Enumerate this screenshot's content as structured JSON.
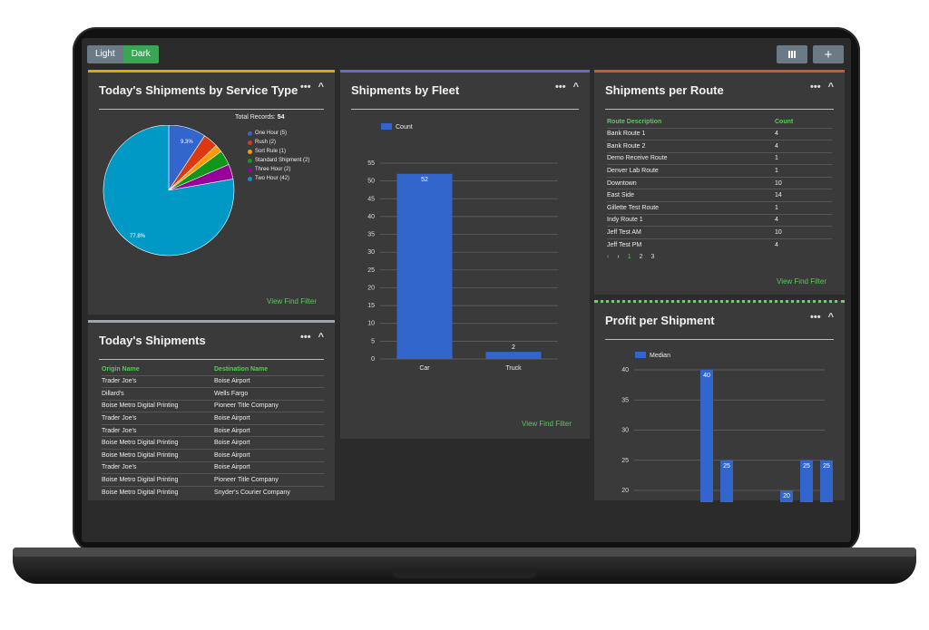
{
  "toolbar": {
    "light_label": "Light",
    "dark_label": "Dark",
    "add_label": "+"
  },
  "colors": {
    "accent_green": "#5cc85c",
    "bar_blue": "#3366cc"
  },
  "common": {
    "menu_dots": "•••",
    "collapse": "^",
    "view_filter": "View Find Filter"
  },
  "service_type": {
    "title": "Today's Shipments by Service Type",
    "total_label": "Total Records:",
    "total_value": "54",
    "pct_two_hour": "77.8%",
    "pct_one_hour": "9.3%",
    "legend": [
      {
        "label": "One Hour (5)",
        "color": "#3366cc",
        "count": 5
      },
      {
        "label": "Rush (2)",
        "color": "#dc3912",
        "count": 2
      },
      {
        "label": "Sort Rule (1)",
        "color": "#ff9900",
        "count": 1
      },
      {
        "label": "Standard Shipment (2)",
        "color": "#109618",
        "count": 2
      },
      {
        "label": "Three Hour (2)",
        "color": "#990099",
        "count": 2
      },
      {
        "label": "Two Hour (42)",
        "color": "#0099c6",
        "count": 42
      }
    ]
  },
  "fleet": {
    "title": "Shipments by Fleet",
    "legend_label": "Count",
    "y_ticks": [
      "0",
      "5",
      "10",
      "15",
      "20",
      "25",
      "30",
      "35",
      "40",
      "45",
      "50",
      "55"
    ],
    "bars": [
      {
        "category": "Car",
        "value": 52,
        "label": "52"
      },
      {
        "category": "Truck",
        "value": 2,
        "label": "2"
      }
    ]
  },
  "routes": {
    "title": "Shipments per Route",
    "col_route": "Route Description",
    "col_count": "Count",
    "rows": [
      {
        "route": "Bank Route 1",
        "count": "4"
      },
      {
        "route": "Bank Route 2",
        "count": "4"
      },
      {
        "route": "Demo Receive Route",
        "count": "1"
      },
      {
        "route": "Denver Lab Route",
        "count": "1"
      },
      {
        "route": "Downtown",
        "count": "10"
      },
      {
        "route": "East Side",
        "count": "14"
      },
      {
        "route": "Gillette Test Route",
        "count": "1"
      },
      {
        "route": "Indy Route 1",
        "count": "4"
      },
      {
        "route": "Jeff Test AM",
        "count": "10"
      },
      {
        "route": "Jeff Test PM",
        "count": "4"
      }
    ],
    "pager": {
      "prev": "‹",
      "next": "›",
      "pages": [
        "1",
        "2",
        "3"
      ]
    }
  },
  "todays": {
    "title": "Today's Shipments",
    "col_origin": "Origin Name",
    "col_dest": "Destination Name",
    "rows": [
      {
        "origin": "Trader Joe's",
        "dest": "Boise Airport"
      },
      {
        "origin": "Dillard's",
        "dest": "Wells Fargo"
      },
      {
        "origin": "Boise Metro Digital Printing",
        "dest": "Pioneer Title Company"
      },
      {
        "origin": "Trader Joe's",
        "dest": "Boise Airport"
      },
      {
        "origin": "Trader Joe's",
        "dest": "Boise Airport"
      },
      {
        "origin": "Boise Metro Digital Printing",
        "dest": "Boise Airport"
      },
      {
        "origin": "Boise Metro Digital Printing",
        "dest": "Boise Airport"
      },
      {
        "origin": "Trader Joe's",
        "dest": "Boise Airport"
      },
      {
        "origin": "Boise Metro Digital Printing",
        "dest": "Pioneer Title Company"
      },
      {
        "origin": "Boise Metro Digital Printing",
        "dest": "Snyder's Courier Company"
      }
    ]
  },
  "profit": {
    "title": "Profit per Shipment",
    "legend_label": "Median",
    "y_ticks": [
      "20",
      "25",
      "30",
      "35",
      "40"
    ],
    "bars": [
      {
        "value": 40,
        "label": "40"
      },
      {
        "value": 25,
        "label": "25"
      },
      {
        "value": 20,
        "label": "20"
      },
      {
        "value": 25,
        "label": "25"
      },
      {
        "value": 25,
        "label": "25"
      }
    ]
  }
}
